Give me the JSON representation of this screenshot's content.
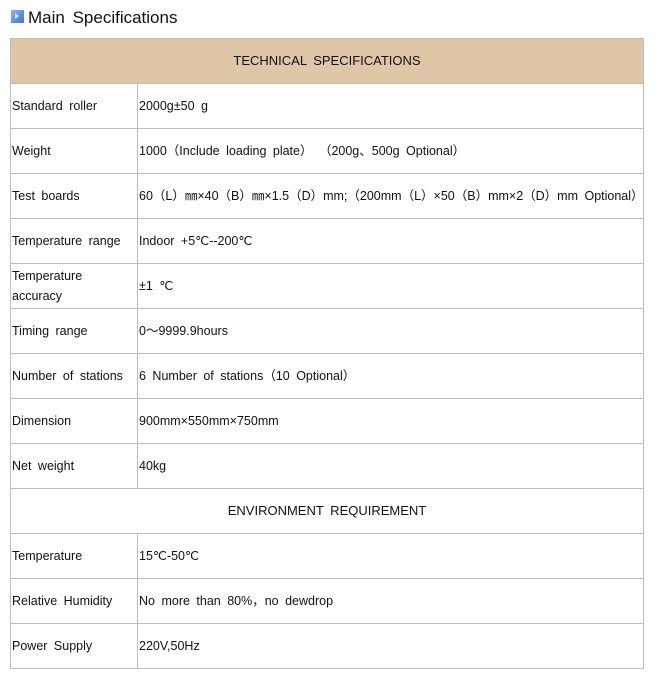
{
  "title": "Main Specifications",
  "technical": {
    "header": "TECHNICAL SPECIFICATIONS",
    "rows": [
      {
        "label": "Standard roller",
        "value": "2000g±50 g"
      },
      {
        "label": "Weight",
        "value": "1000（Include loading plate） （200g、500g Optional）"
      },
      {
        "label": "Test boards",
        "value": "60（L）㎜×40（B）㎜×1.5（D）mm;（200mm（L）×50（B）mm×2（D）mm Optional）"
      },
      {
        "label": "Temperature range",
        "value": "Indoor +5℃--200℃"
      },
      {
        "label": "Temperature accuracy",
        "value": "±1 ℃"
      },
      {
        "label": "Timing range",
        "value": "0～9999.9hours"
      },
      {
        "label": "Number of stations",
        "value": "6 Number of stations（10 Optional）"
      },
      {
        "label": "Dimension",
        "value": "900mm×550mm×750mm"
      },
      {
        "label": "Net weight",
        "value": "40kg"
      }
    ]
  },
  "environment": {
    "header": "ENVIRONMENT REQUIREMENT",
    "rows": [
      {
        "label": "Temperature",
        "value": "15℃-50℃"
      },
      {
        "label": "Relative Humidity",
        "value": "No more than 80%，no dewdrop"
      },
      {
        "label": "Power Supply",
        "value": "220V,50Hz"
      }
    ]
  },
  "colors": {
    "header_bg": "#dfc6a7",
    "border": "#bdbdbd",
    "icon": "#3a72d8"
  }
}
